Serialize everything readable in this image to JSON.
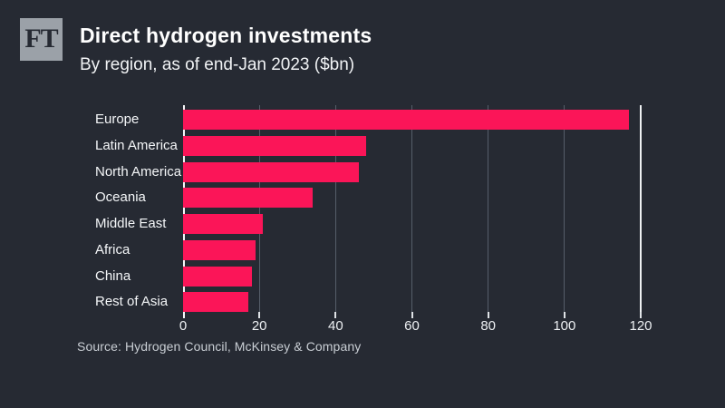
{
  "branding": {
    "logo_text": "FT"
  },
  "header": {
    "title": "Direct hydrogen investments",
    "subtitle": "By region, as of end-Jan 2023 ($bn)"
  },
  "chart_data": {
    "type": "bar",
    "orientation": "horizontal",
    "title": "Direct hydrogen investments",
    "subtitle": "By region, as of end-Jan 2023 ($bn)",
    "categories": [
      "Europe",
      "Latin America",
      "North America",
      "Oceania",
      "Middle East",
      "Africa",
      "China",
      "Rest of Asia"
    ],
    "values": [
      117,
      48,
      46,
      34,
      21,
      19,
      18,
      17
    ],
    "xlabel": "",
    "ylabel": "",
    "xlim": [
      0,
      120
    ],
    "xticks": [
      0,
      20,
      40,
      60,
      80,
      100,
      120
    ],
    "grid": true,
    "legend": false,
    "bar_color": "#fb1558"
  },
  "footer": {
    "source": "Source: Hydrogen Council, McKinsey & Company"
  },
  "colors": {
    "background": "#262a33",
    "bar": "#fb1558",
    "gridline": "#565e6a",
    "axis_line": "#f5f7f8",
    "title_text": "#ffffff",
    "label_text": "#f4f6f8",
    "source_text": "#c9ced4",
    "logo_background": "#9ba1a8",
    "logo_text": "#262a33"
  }
}
